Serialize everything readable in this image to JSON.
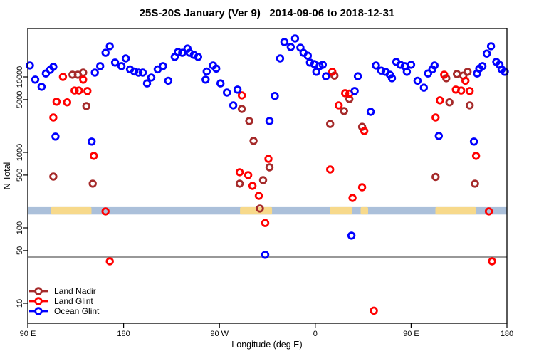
{
  "title": "25S-20S January (Ver 9)   2014-09-06 to 2018-12-31",
  "chart_data": {
    "type": "scatter",
    "title": "25S-20S January (Ver 9)   2014-09-06 to 2018-12-31",
    "xlabel": "Longitude (deg E)",
    "ylabel": "N Total",
    "y_scale": "log",
    "ylim": [
      5,
      45000
    ],
    "x_axis_deg_range": [
      90,
      540
    ],
    "grid": false,
    "x_ticks": [
      {
        "deg": 90,
        "label": "90 E"
      },
      {
        "deg": 180,
        "label": "180"
      },
      {
        "deg": 270,
        "label": "90 W"
      },
      {
        "deg": 360,
        "label": "0"
      },
      {
        "deg": 450,
        "label": "90 E"
      },
      {
        "deg": 540,
        "label": "180"
      }
    ],
    "y_ticks": [
      {
        "value": 10000,
        "label": "10000"
      },
      {
        "value": 5000,
        "label": "5000"
      },
      {
        "value": 1000,
        "label": "1000"
      },
      {
        "value": 500,
        "label": "500"
      },
      {
        "value": 100,
        "label": "100"
      },
      {
        "value": 50,
        "label": "50"
      },
      {
        "value": 10,
        "label": "10"
      }
    ],
    "reference_line": {
      "value": 41,
      "color": "#777777"
    },
    "coast_band": {
      "value_range": [
        150,
        188
      ],
      "ocean_color": "#abc0da",
      "land_color": "#f7d98b",
      "land_segments_deg": [
        [
          111.7,
          149.8
        ],
        [
          289.3,
          319.4
        ],
        [
          373.5,
          394.6
        ],
        [
          402.6,
          409.6
        ],
        [
          472.8,
          510.9
        ]
      ]
    },
    "legend": {
      "position": "bottom-left",
      "entries": [
        {
          "label": "Land Nadir",
          "color": "#a52a2a"
        },
        {
          "label": "Land Glint",
          "color": "#ff0000"
        },
        {
          "label": "Ocean Glint",
          "color": "#0000ff"
        }
      ]
    },
    "series": [
      {
        "name": "Land Nadir",
        "color": "#a52a2a",
        "points": [
          [
            114,
            478
          ],
          [
            132,
            10700
          ],
          [
            137,
            10700
          ],
          [
            142,
            11400
          ],
          [
            145,
            4100
          ],
          [
            151,
            385
          ],
          [
            289,
            385
          ],
          [
            291,
            3760
          ],
          [
            298,
            2600
          ],
          [
            302,
            1420
          ],
          [
            308,
            180
          ],
          [
            311,
            429
          ],
          [
            317,
            634
          ],
          [
            374,
            2380
          ],
          [
            378,
            10400
          ],
          [
            387,
            3530
          ],
          [
            392,
            5100
          ],
          [
            404,
            2180
          ],
          [
            473,
            473
          ],
          [
            483,
            9600
          ],
          [
            486,
            4600
          ],
          [
            493,
            10900
          ],
          [
            499,
            10400
          ],
          [
            503,
            11700
          ],
          [
            505,
            4200
          ],
          [
            510,
            385
          ]
        ]
      },
      {
        "name": "Land Glint",
        "color": "#ff0000",
        "points": [
          [
            114,
            2900
          ],
          [
            117,
            4700
          ],
          [
            123,
            10000
          ],
          [
            127,
            4600
          ],
          [
            134,
            6600
          ],
          [
            138,
            6600
          ],
          [
            142,
            9200
          ],
          [
            146,
            6500
          ],
          [
            152,
            900
          ],
          [
            163,
            165
          ],
          [
            167,
            36
          ],
          [
            289,
            545
          ],
          [
            291,
            5700
          ],
          [
            297,
            500
          ],
          [
            301,
            360
          ],
          [
            307,
            266
          ],
          [
            313,
            116
          ],
          [
            316,
            820
          ],
          [
            374,
            594
          ],
          [
            376,
            11700
          ],
          [
            382,
            4200
          ],
          [
            388,
            6100
          ],
          [
            392,
            6000
          ],
          [
            395,
            249
          ],
          [
            404,
            345
          ],
          [
            406,
            1920
          ],
          [
            415,
            8
          ],
          [
            473,
            2900
          ],
          [
            477,
            4900
          ],
          [
            481,
            10700
          ],
          [
            492,
            6800
          ],
          [
            497,
            6600
          ],
          [
            501,
            8900
          ],
          [
            505,
            6500
          ],
          [
            511,
            900
          ],
          [
            523,
            165
          ],
          [
            526,
            36
          ]
        ]
      },
      {
        "name": "Ocean Glint",
        "color": "#0000ff",
        "points": [
          [
            92,
            14200
          ],
          [
            97,
            9200
          ],
          [
            103,
            7400
          ],
          [
            107,
            11100
          ],
          [
            111,
            12400
          ],
          [
            114,
            13600
          ],
          [
            116,
            1620
          ],
          [
            150,
            1390
          ],
          [
            153,
            11400
          ],
          [
            158,
            13900
          ],
          [
            163,
            20900
          ],
          [
            167,
            25500
          ],
          [
            172,
            15500
          ],
          [
            178,
            13900
          ],
          [
            182,
            17600
          ],
          [
            186,
            12600
          ],
          [
            190,
            11800
          ],
          [
            194,
            11400
          ],
          [
            198,
            11400
          ],
          [
            202,
            8200
          ],
          [
            206,
            9800
          ],
          [
            212,
            12600
          ],
          [
            217,
            13900
          ],
          [
            222,
            8900
          ],
          [
            228,
            18400
          ],
          [
            231,
            21400
          ],
          [
            235,
            20900
          ],
          [
            240,
            23800
          ],
          [
            242,
            20900
          ],
          [
            246,
            19600
          ],
          [
            250,
            18400
          ],
          [
            257,
            9200
          ],
          [
            258,
            11800
          ],
          [
            264,
            14200
          ],
          [
            267,
            12900
          ],
          [
            271,
            8200
          ],
          [
            277,
            6200
          ],
          [
            283,
            4200
          ],
          [
            287,
            6800
          ],
          [
            313,
            44
          ],
          [
            317,
            2600
          ],
          [
            322,
            5600
          ],
          [
            327,
            17600
          ],
          [
            331,
            29000
          ],
          [
            337,
            24900
          ],
          [
            341,
            32300
          ],
          [
            346,
            24400
          ],
          [
            349,
            20900
          ],
          [
            353,
            19100
          ],
          [
            355,
            15500
          ],
          [
            359,
            14800
          ],
          [
            361,
            11700
          ],
          [
            364,
            13900
          ],
          [
            367,
            14500
          ],
          [
            370,
            10200
          ],
          [
            394,
            79
          ],
          [
            397,
            6500
          ],
          [
            400,
            10200
          ],
          [
            412,
            3450
          ],
          [
            417,
            14200
          ],
          [
            422,
            12100
          ],
          [
            426,
            11700
          ],
          [
            430,
            10700
          ],
          [
            432,
            9600
          ],
          [
            436,
            15800
          ],
          [
            440,
            14500
          ],
          [
            444,
            13900
          ],
          [
            446,
            11700
          ],
          [
            450,
            14500
          ],
          [
            456,
            8900
          ],
          [
            462,
            7200
          ],
          [
            466,
            11100
          ],
          [
            470,
            12600
          ],
          [
            472,
            14200
          ],
          [
            476,
            1650
          ],
          [
            509,
            1390
          ],
          [
            512,
            11100
          ],
          [
            514,
            12900
          ],
          [
            517,
            13900
          ],
          [
            521,
            20400
          ],
          [
            525,
            25500
          ],
          [
            530,
            15800
          ],
          [
            533,
            14500
          ],
          [
            535,
            12600
          ],
          [
            538,
            11700
          ]
        ]
      }
    ]
  }
}
